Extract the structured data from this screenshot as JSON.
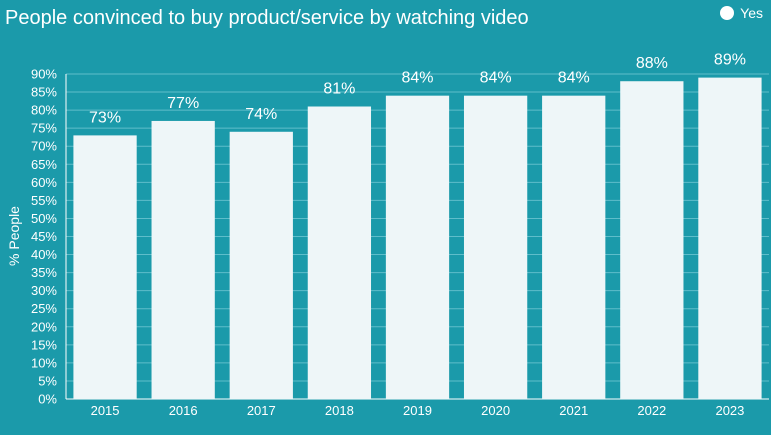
{
  "chart_data": {
    "type": "bar",
    "title": "People convinced to buy product/service by watching video",
    "ylabel": "% People",
    "xlabel": "",
    "categories": [
      "2015",
      "2016",
      "2017",
      "2018",
      "2019",
      "2020",
      "2021",
      "2022",
      "2023"
    ],
    "series": [
      {
        "name": "Yes",
        "values": [
          73,
          77,
          74,
          81,
          84,
          84,
          84,
          88,
          89
        ]
      }
    ],
    "ylim": [
      0,
      90
    ],
    "ytick_step": 5,
    "ytick_suffix": "%",
    "data_label_suffix": "%",
    "grid": true,
    "legend_position": "top-right",
    "colors": {
      "background": "#1b9aaa",
      "bar": "#eef6f8",
      "grid": "#5fbdca",
      "text": "#ffffff"
    }
  }
}
